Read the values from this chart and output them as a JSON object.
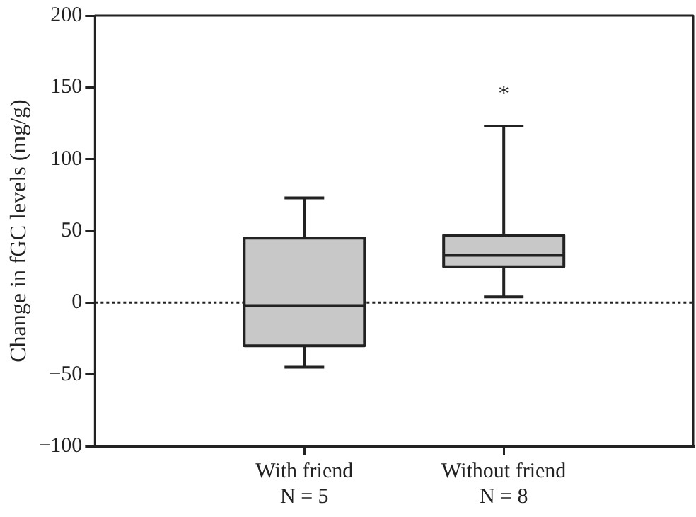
{
  "chart_data": {
    "type": "box",
    "ylabel": "Change in fGC levels (mg/g)",
    "categories": [
      "With friend\nN = 5",
      "Without friend\nN = 8"
    ],
    "boxes": [
      {
        "low": -45,
        "q1": -30,
        "median": -2,
        "q3": 45,
        "high": 73
      },
      {
        "low": 4,
        "q1": 25,
        "median": 33,
        "q3": 47,
        "high": 123
      }
    ],
    "color": "#c8c8c8",
    "ylim": [
      -100,
      200
    ],
    "yticks": [
      -100,
      -50,
      0,
      50,
      100,
      150,
      200
    ],
    "grid": false,
    "ref_lines": [
      {
        "axis": "y",
        "value": 0,
        "line_style": "dotted"
      }
    ],
    "annotations": [
      "*"
    ]
  }
}
